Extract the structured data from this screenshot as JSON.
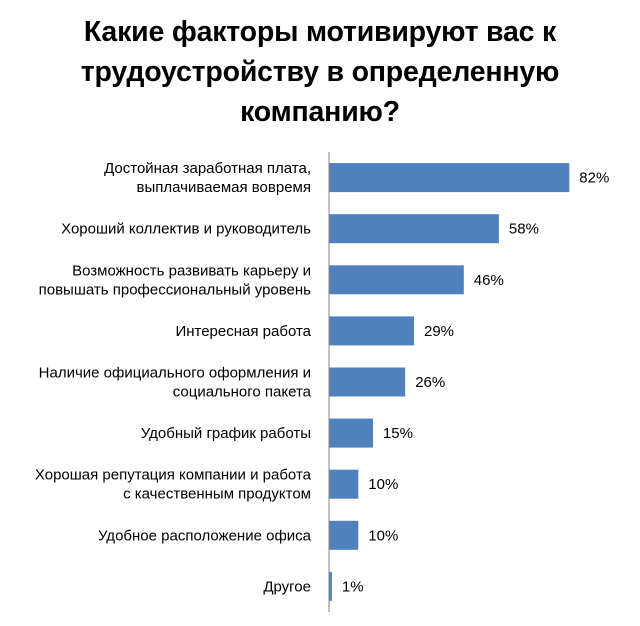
{
  "chart_data": {
    "type": "bar",
    "orientation": "horizontal",
    "title_lines": [
      "Какие факторы мотивируют вас к",
      "трудоустройству в определенную",
      "компанию?"
    ],
    "categories": [
      [
        "Достойная заработная плата,",
        "выплачиваемая вовремя"
      ],
      [
        "Хороший коллектив и руководитель"
      ],
      [
        "Возможность развивать карьеру и",
        "повышать профессиональный уровень"
      ],
      [
        "Интересная работа"
      ],
      [
        "Наличие официального оформления и",
        "социального пакета"
      ],
      [
        "Удобный график работы"
      ],
      [
        "Хорошая репутация компании и работа",
        "с качественным продуктом"
      ],
      [
        "Удобное расположение офиса"
      ],
      [
        "Другое"
      ]
    ],
    "values": [
      82,
      58,
      46,
      29,
      26,
      15,
      10,
      10,
      1
    ],
    "value_labels": [
      "82%",
      "58%",
      "46%",
      "29%",
      "26%",
      "15%",
      "10%",
      "10%",
      "1%"
    ],
    "value_unit": "%",
    "xlim": [
      0,
      100
    ],
    "grid": false,
    "legend": "none",
    "bar_color": "#4f81bd",
    "axis_color": "#868686"
  }
}
